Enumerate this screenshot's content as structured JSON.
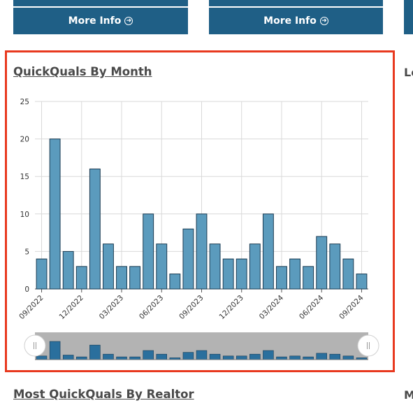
{
  "top_cards": {
    "left_button": "More Info",
    "right_button": "More Info",
    "button_icon": "arrow-circle-right-icon"
  },
  "panel": {
    "title": "QuickQuals By Month"
  },
  "next_section": {
    "title": "Most QuickQuals By Realtor"
  },
  "edge_fragments": {
    "right_title_fragment": "Le",
    "bottom_right_fragment": "M"
  },
  "colors": {
    "bar_fill": "#5b9bbd",
    "bar_stroke": "#1b3b52",
    "nav_bar_fill": "#2a6f9d",
    "nav_bg": "#b3b3b3",
    "highlight_border": "#e8391f",
    "card_blue": "#1f5f86"
  },
  "chart_data": {
    "type": "bar",
    "title": "QuickQuals By Month",
    "xlabel": "",
    "ylabel": "",
    "ylim": [
      0,
      25
    ],
    "yticks": [
      0,
      5,
      10,
      15,
      20,
      25
    ],
    "grid": true,
    "categories": [
      "09/2022",
      "10/2022",
      "11/2022",
      "12/2022",
      "01/2023",
      "02/2023",
      "03/2023",
      "04/2023",
      "05/2023",
      "06/2023",
      "07/2023",
      "08/2023",
      "09/2023",
      "10/2023",
      "11/2023",
      "12/2023",
      "01/2024",
      "02/2024",
      "03/2024",
      "04/2024",
      "05/2024",
      "06/2024",
      "07/2024",
      "08/2024",
      "09/2024"
    ],
    "tick_labels": [
      "09/2022",
      "12/2022",
      "03/2023",
      "06/2023",
      "09/2023",
      "12/2023",
      "03/2024",
      "06/2024",
      "09/2024"
    ],
    "values": [
      4,
      20,
      5,
      3,
      16,
      6,
      3,
      3,
      10,
      6,
      2,
      8,
      10,
      6,
      4,
      4,
      6,
      10,
      3,
      4,
      3,
      7,
      6,
      4,
      2
    ],
    "navigator": true
  }
}
